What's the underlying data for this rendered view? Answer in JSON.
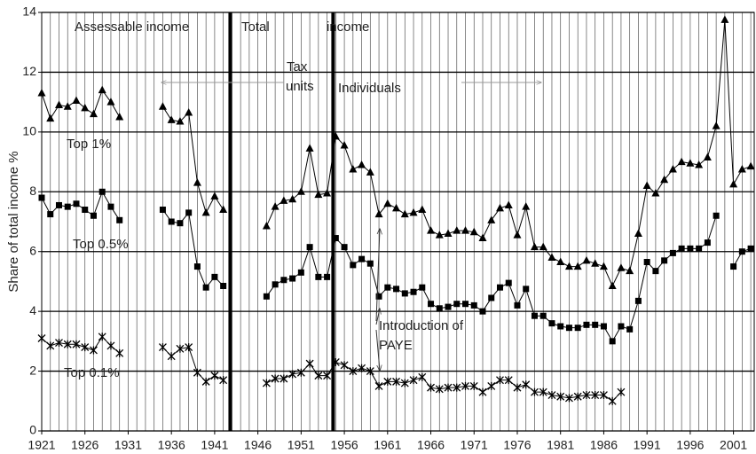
{
  "chart_data": {
    "type": "line",
    "y_label": "Share of total income %",
    "x": [
      1921,
      1922,
      1923,
      1924,
      1925,
      1926,
      1927,
      1928,
      1929,
      1930,
      1931,
      1932,
      1933,
      1934,
      1935,
      1936,
      1937,
      1938,
      1939,
      1940,
      1941,
      1942,
      1943,
      1944,
      1945,
      1946,
      1947,
      1948,
      1949,
      1950,
      1951,
      1952,
      1953,
      1954,
      1955,
      1956,
      1957,
      1958,
      1959,
      1960,
      1961,
      1962,
      1963,
      1964,
      1965,
      1966,
      1967,
      1968,
      1969,
      1970,
      1971,
      1972,
      1973,
      1974,
      1975,
      1976,
      1977,
      1978,
      1979,
      1980,
      1981,
      1982,
      1983,
      1984,
      1985,
      1986,
      1987,
      1988,
      1989,
      1990,
      1991,
      1992,
      1993,
      1994,
      1995,
      1996,
      1997,
      1998,
      1999,
      2000,
      2001,
      2002,
      2003
    ],
    "series": [
      {
        "name": "Top 1%",
        "color": "#000000",
        "marker": "triangle",
        "values": [
          11.3,
          10.45,
          10.9,
          10.85,
          11.05,
          10.8,
          10.6,
          11.4,
          11.0,
          10.5,
          null,
          null,
          null,
          null,
          10.85,
          10.4,
          10.35,
          10.65,
          8.3,
          7.3,
          7.85,
          7.4,
          null,
          null,
          null,
          null,
          6.85,
          7.5,
          7.7,
          7.75,
          8.0,
          9.45,
          7.9,
          7.95,
          9.85,
          9.55,
          8.75,
          8.9,
          8.65,
          7.25,
          7.6,
          7.45,
          7.25,
          7.3,
          7.4,
          6.7,
          6.55,
          6.6,
          6.7,
          6.7,
          6.65,
          6.45,
          7.05,
          7.45,
          7.55,
          6.55,
          7.5,
          6.15,
          6.15,
          5.8,
          5.65,
          5.5,
          5.5,
          5.7,
          5.6,
          5.5,
          4.85,
          5.45,
          5.35,
          6.6,
          8.2,
          7.95,
          8.4,
          8.75,
          9.0,
          8.95,
          8.9,
          9.15,
          10.2,
          13.75,
          8.25,
          8.75,
          8.85
        ]
      },
      {
        "name": "Top 0.5%",
        "color": "#000000",
        "marker": "square",
        "values": [
          7.8,
          7.25,
          7.55,
          7.5,
          7.6,
          7.4,
          7.2,
          8.0,
          7.5,
          7.05,
          null,
          null,
          null,
          null,
          7.4,
          7.0,
          6.95,
          7.3,
          5.5,
          4.8,
          5.15,
          4.85,
          null,
          null,
          null,
          null,
          4.5,
          4.9,
          5.05,
          5.1,
          5.3,
          6.15,
          5.15,
          5.15,
          6.45,
          6.15,
          5.55,
          5.75,
          5.6,
          4.5,
          4.8,
          4.75,
          4.6,
          4.65,
          4.8,
          4.25,
          4.1,
          4.15,
          4.25,
          4.25,
          4.2,
          4.0,
          4.45,
          4.8,
          4.95,
          4.2,
          4.75,
          3.85,
          3.85,
          3.6,
          3.5,
          3.45,
          3.45,
          3.55,
          3.55,
          3.5,
          3.0,
          3.5,
          3.4,
          4.35,
          5.65,
          5.35,
          5.7,
          5.95,
          6.1,
          6.1,
          6.1,
          6.3,
          7.2,
          null,
          5.5,
          6.0,
          6.1
        ]
      },
      {
        "name": "Top 0.1%",
        "color": "#000000",
        "marker": "star",
        "values": [
          3.1,
          2.85,
          2.95,
          2.9,
          2.9,
          2.8,
          2.7,
          3.15,
          2.85,
          2.6,
          null,
          null,
          null,
          null,
          2.8,
          2.5,
          2.75,
          2.8,
          1.95,
          1.65,
          1.85,
          1.7,
          null,
          null,
          null,
          null,
          1.6,
          1.75,
          1.75,
          1.9,
          1.95,
          2.25,
          1.85,
          1.85,
          2.3,
          2.2,
          2.0,
          2.1,
          2.0,
          1.5,
          1.65,
          1.65,
          1.6,
          1.7,
          1.8,
          1.45,
          1.4,
          1.45,
          1.45,
          1.5,
          1.5,
          1.3,
          1.5,
          1.7,
          1.7,
          1.45,
          1.55,
          1.3,
          1.3,
          1.2,
          1.15,
          1.1,
          1.15,
          1.2,
          1.2,
          1.2,
          1.0,
          1.3,
          null,
          null,
          null,
          null,
          null,
          null,
          null,
          null,
          null,
          null,
          null,
          null,
          null,
          null,
          null
        ]
      }
    ],
    "xlim": [
      1921,
      2003.4
    ],
    "xticks": [
      1921,
      1926,
      1931,
      1936,
      1941,
      1946,
      1951,
      1956,
      1961,
      1966,
      1971,
      1976,
      1981,
      1986,
      1991,
      1996,
      2001
    ],
    "x_grid_step": 1,
    "ylim": [
      0,
      14
    ],
    "yticks": [
      0,
      2,
      4,
      6,
      8,
      10,
      12,
      14
    ],
    "grid": true,
    "regime_breaks": [
      1942.8,
      1954.7
    ],
    "annotations": {
      "assessable": "Assessable income",
      "total": "Total",
      "income": "income",
      "tax_units": [
        "Tax",
        "units"
      ],
      "individuals": "Individuals",
      "paye": [
        "Introduction of",
        "PAYE"
      ]
    }
  }
}
